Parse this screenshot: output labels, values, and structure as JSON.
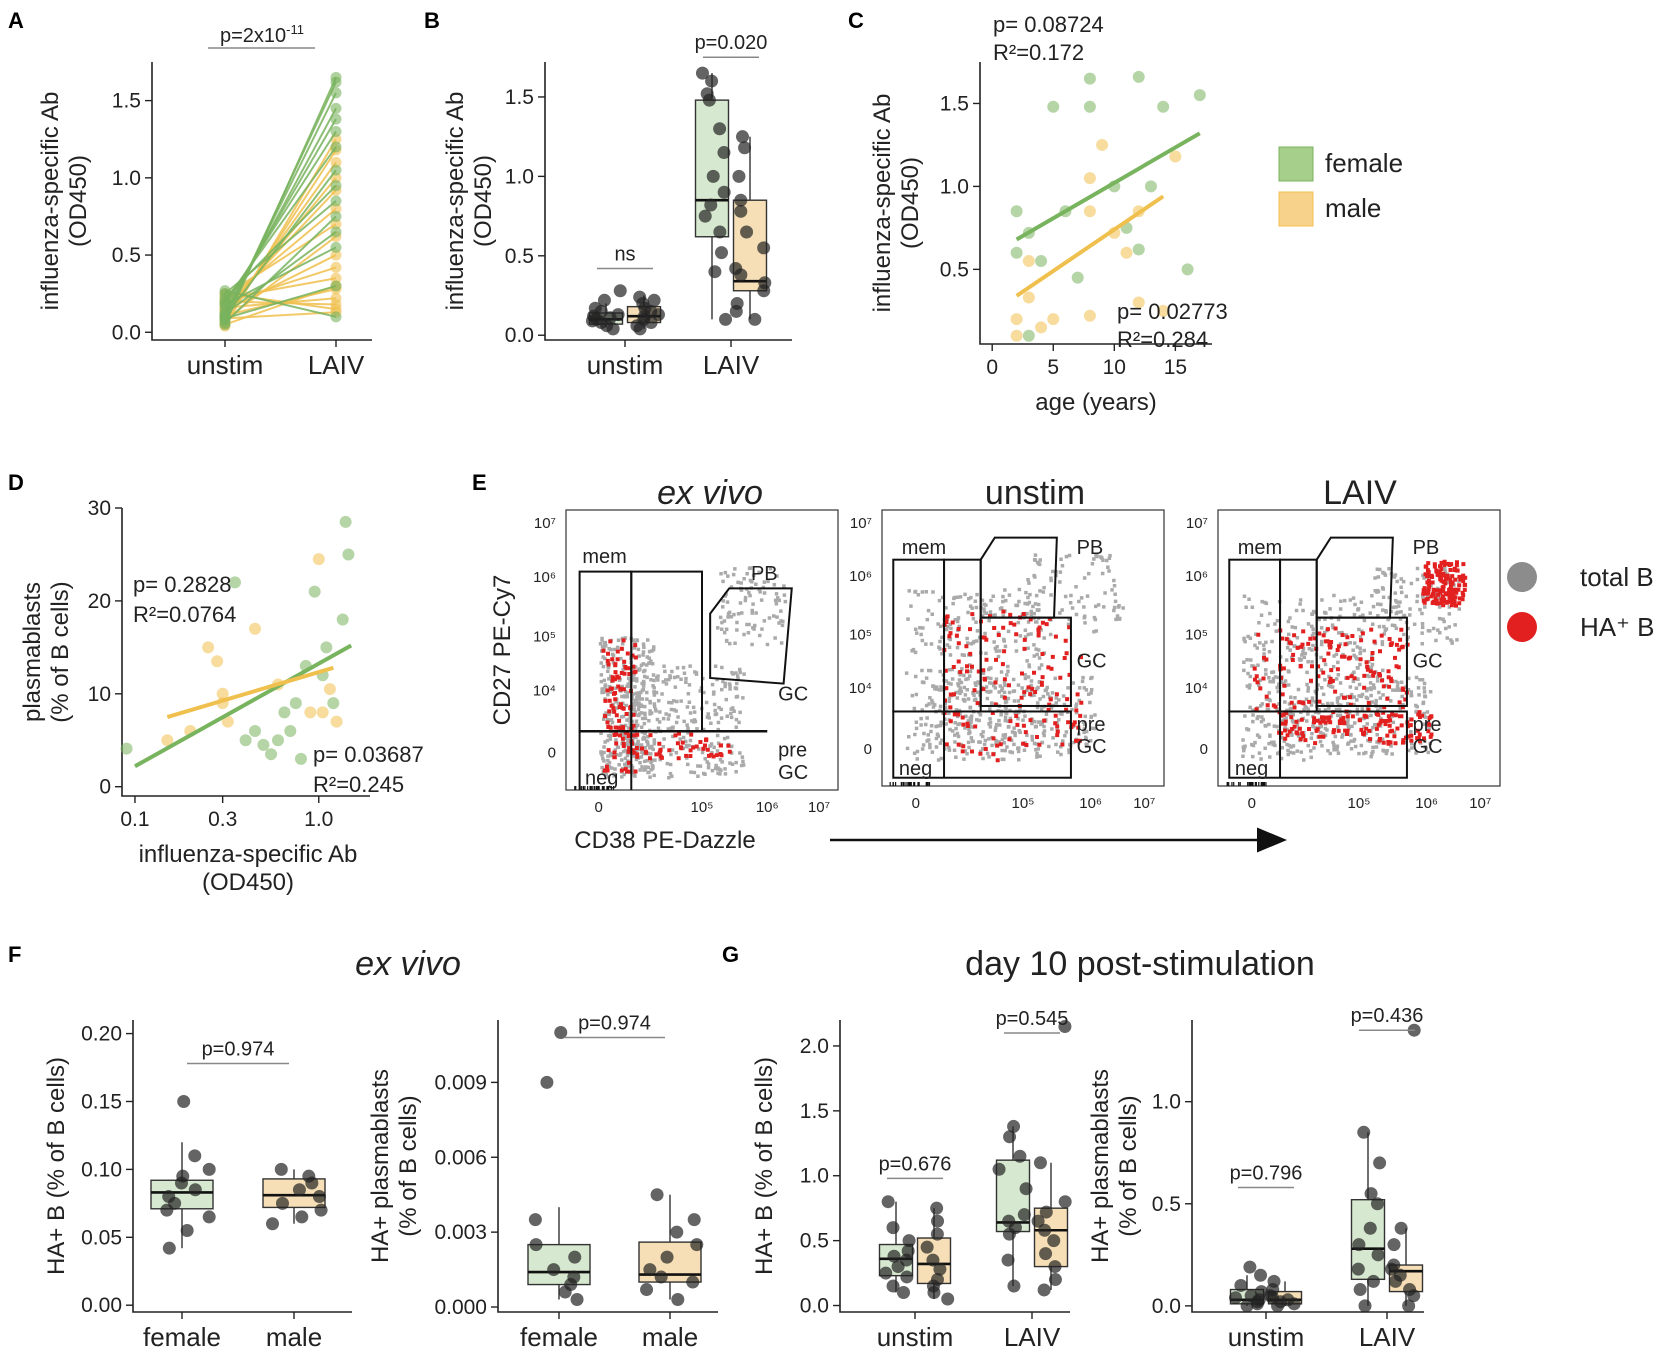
{
  "colors": {
    "female": "#78b35e",
    "male": "#f0c04e",
    "female_fill": "#d6e8cf",
    "male_fill": "#f6dfb6",
    "black": "#222222",
    "total_b": "#aaaaaa",
    "ha_b": "#e32020",
    "green_text": "#1d9a3c",
    "orange_text": "#e8ac3a"
  },
  "legend": {
    "female": "female",
    "male": "male",
    "total_b": "total B",
    "ha_b": "HA⁺ B"
  },
  "chart_data": [
    {
      "id": "A",
      "panel": "A",
      "type": "paired-line",
      "ylabel1": "influenza-specific Ab",
      "ylabel2": "(OD450)",
      "categories": [
        "unstim",
        "LAIV"
      ],
      "ylim": [
        -0.05,
        1.75
      ],
      "yticks": [
        "0.0",
        "0.5",
        "1.0",
        "1.5"
      ],
      "pvalue": "p=2x10",
      "pexp": "-11",
      "pairs_female": [
        [
          0.05,
          1.65
        ],
        [
          0.08,
          1.62
        ],
        [
          0.1,
          1.55
        ],
        [
          0.12,
          1.45
        ],
        [
          0.15,
          1.38
        ],
        [
          0.18,
          1.3
        ],
        [
          0.2,
          1.2
        ],
        [
          0.1,
          1.05
        ],
        [
          0.22,
          0.95
        ],
        [
          0.25,
          0.85
        ],
        [
          0.06,
          0.75
        ],
        [
          0.12,
          0.65
        ],
        [
          0.18,
          0.55
        ],
        [
          0.09,
          0.3
        ],
        [
          0.27,
          0.1
        ]
      ],
      "pairs_male": [
        [
          0.04,
          1.25
        ],
        [
          0.07,
          1.18
        ],
        [
          0.1,
          1.1
        ],
        [
          0.13,
          1.0
        ],
        [
          0.16,
          0.92
        ],
        [
          0.2,
          0.8
        ],
        [
          0.24,
          0.7
        ],
        [
          0.08,
          0.62
        ],
        [
          0.14,
          0.5
        ],
        [
          0.19,
          0.42
        ],
        [
          0.22,
          0.35
        ],
        [
          0.05,
          0.3
        ],
        [
          0.11,
          0.28
        ],
        [
          0.16,
          0.22
        ],
        [
          0.2,
          0.18
        ],
        [
          0.25,
          0.15
        ],
        [
          0.09,
          0.13
        ]
      ]
    },
    {
      "id": "B",
      "panel": "B",
      "type": "box",
      "ylabel1": "influenza-specific Ab",
      "ylabel2": "(OD450)",
      "categories": [
        "unstim",
        "LAIV"
      ],
      "ylim": [
        -0.03,
        1.72
      ],
      "yticks": [
        "0.0",
        "0.5",
        "1.0",
        "1.5"
      ],
      "annotations": [
        {
          "text": "ns",
          "group": 0,
          "y": 0.42
        },
        {
          "text": "p=0.020",
          "group": 1,
          "y": 1.75
        }
      ],
      "boxes": [
        {
          "group": 0,
          "sex": "female",
          "q1": 0.07,
          "med": 0.1,
          "q3": 0.14,
          "lo": 0.05,
          "hi": 0.2,
          "pts": [
            0.04,
            0.06,
            0.08,
            0.09,
            0.1,
            0.11,
            0.12,
            0.13,
            0.15,
            0.17,
            0.22,
            0.28
          ]
        },
        {
          "group": 0,
          "sex": "male",
          "q1": 0.08,
          "med": 0.12,
          "q3": 0.18,
          "lo": 0.04,
          "hi": 0.25,
          "pts": [
            0.04,
            0.06,
            0.08,
            0.1,
            0.12,
            0.13,
            0.15,
            0.17,
            0.2,
            0.22,
            0.24
          ]
        },
        {
          "group": 1,
          "sex": "female",
          "q1": 0.62,
          "med": 0.85,
          "q3": 1.48,
          "lo": 0.1,
          "hi": 1.65,
          "pts": [
            0.1,
            0.4,
            0.52,
            0.65,
            0.75,
            0.82,
            0.9,
            1.0,
            1.15,
            1.3,
            1.48,
            1.52,
            1.6,
            1.65
          ]
        },
        {
          "group": 1,
          "sex": "male",
          "q1": 0.28,
          "med": 0.34,
          "q3": 0.85,
          "lo": 0.1,
          "hi": 1.25,
          "pts": [
            0.1,
            0.15,
            0.2,
            0.28,
            0.33,
            0.38,
            0.42,
            0.55,
            0.65,
            0.78,
            0.85,
            1.0,
            1.18,
            1.25
          ]
        }
      ]
    },
    {
      "id": "C",
      "panel": "C",
      "type": "scatter",
      "ylabel1": "influenza-specific Ab",
      "ylabel2": "(OD450)",
      "xlabel": "age (years)",
      "xlim": [
        -1,
        18
      ],
      "ylim": [
        0.05,
        1.75
      ],
      "xticks": [
        0,
        5,
        10,
        15
      ],
      "yticks": [
        0.5,
        1.0,
        1.5
      ],
      "female_pts": [
        [
          2,
          0.85
        ],
        [
          2,
          0.6
        ],
        [
          3,
          0.72
        ],
        [
          4,
          0.55
        ],
        [
          5,
          1.48
        ],
        [
          7,
          0.45
        ],
        [
          8,
          1.48
        ],
        [
          8,
          1.65
        ],
        [
          10,
          1.0
        ],
        [
          11,
          0.75
        ],
        [
          12,
          1.66
        ],
        [
          13,
          1.0
        ],
        [
          14,
          1.48
        ],
        [
          16,
          0.5
        ],
        [
          17,
          1.55
        ],
        [
          3,
          0.1
        ],
        [
          12,
          0.62
        ],
        [
          6,
          0.85
        ]
      ],
      "male_pts": [
        [
          2,
          0.2
        ],
        [
          2,
          0.1
        ],
        [
          3,
          0.55
        ],
        [
          4,
          0.15
        ],
        [
          5,
          0.2
        ],
        [
          8,
          1.05
        ],
        [
          8,
          0.85
        ],
        [
          8,
          0.22
        ],
        [
          9,
          1.25
        ],
        [
          10,
          0.72
        ],
        [
          11,
          0.6
        ],
        [
          12,
          0.85
        ],
        [
          12,
          0.3
        ],
        [
          14,
          0.25
        ],
        [
          15,
          1.18
        ],
        [
          3,
          0.33
        ]
      ],
      "female_fit": [
        [
          2,
          0.68
        ],
        [
          17,
          1.32
        ]
      ],
      "male_fit": [
        [
          2,
          0.34
        ],
        [
          14,
          0.94
        ]
      ],
      "female_stats": [
        "p= 0.08724",
        "R²=0.172"
      ],
      "male_stats": [
        "p= 0.02773",
        "R²=0.284"
      ]
    },
    {
      "id": "D",
      "panel": "D",
      "type": "scatter-log",
      "ylabel1": "plasmablasts",
      "ylabel2": "(% of B cells)",
      "xlabel1": "influenza-specific Ab",
      "xlabel2": "(OD450)",
      "xlim": [
        0.085,
        1.9
      ],
      "ylim": [
        -1,
        30
      ],
      "xticks": [
        0.1,
        0.3,
        1.0
      ],
      "xtick_labels": [
        "0.1",
        "0.3",
        "1.0"
      ],
      "yticks": [
        0,
        10,
        20,
        30
      ],
      "female_pts": [
        [
          0.09,
          4.1
        ],
        [
          0.4,
          5
        ],
        [
          0.45,
          6
        ],
        [
          0.5,
          4.5
        ],
        [
          0.55,
          3.5
        ],
        [
          0.6,
          5
        ],
        [
          0.65,
          8
        ],
        [
          0.7,
          6
        ],
        [
          0.75,
          9
        ],
        [
          0.85,
          13
        ],
        [
          0.95,
          21
        ],
        [
          1.05,
          12
        ],
        [
          1.1,
          15
        ],
        [
          1.35,
          18
        ],
        [
          1.4,
          28.5
        ],
        [
          1.45,
          25
        ],
        [
          0.35,
          22
        ],
        [
          1.2,
          9
        ],
        [
          0.8,
          3
        ]
      ],
      "male_pts": [
        [
          0.15,
          5
        ],
        [
          0.2,
          6
        ],
        [
          0.25,
          15
        ],
        [
          0.28,
          13.5
        ],
        [
          0.3,
          10
        ],
        [
          0.32,
          7
        ],
        [
          0.3,
          9
        ],
        [
          0.45,
          17
        ],
        [
          0.9,
          8
        ],
        [
          1.0,
          24.5
        ],
        [
          1.05,
          8
        ],
        [
          1.15,
          10.5
        ],
        [
          0.6,
          11
        ],
        [
          1.25,
          7
        ]
      ],
      "female_fit": [
        [
          0.1,
          2.2
        ],
        [
          1.5,
          15.2
        ]
      ],
      "male_fit": [
        [
          0.15,
          7.5
        ],
        [
          1.2,
          12.8
        ]
      ],
      "female_stats": [
        "p= 0.03687",
        "R²=0.245"
      ],
      "male_stats": [
        "p= 0.2828",
        "R²=0.0764"
      ]
    },
    {
      "id": "F1",
      "panel": "F",
      "type": "box",
      "ylabel1": "HA+ B (% of B cells)",
      "ylabel2": "",
      "categories": [
        "female",
        "male"
      ],
      "ylim": [
        -0.005,
        0.21
      ],
      "yticks": [
        "0.00",
        "0.05",
        "0.10",
        "0.15",
        "0.20"
      ],
      "annotations": [
        {
          "text": "p=0.974",
          "span": true,
          "y": 0.178
        }
      ],
      "boxes": [
        {
          "group": 0,
          "sex": "female",
          "q1": 0.071,
          "med": 0.083,
          "q3": 0.092,
          "lo": 0.042,
          "hi": 0.12,
          "pts": [
            0.042,
            0.055,
            0.065,
            0.07,
            0.075,
            0.08,
            0.085,
            0.09,
            0.095,
            0.1,
            0.11,
            0.15
          ]
        },
        {
          "group": 1,
          "sex": "male",
          "q1": 0.072,
          "med": 0.081,
          "q3": 0.093,
          "lo": 0.06,
          "hi": 0.1,
          "pts": [
            0.06,
            0.065,
            0.07,
            0.075,
            0.08,
            0.085,
            0.09,
            0.095,
            0.1
          ]
        }
      ]
    },
    {
      "id": "F2",
      "panel": "F",
      "type": "box",
      "ylabel1": "HA+ plasmablasts",
      "ylabel2": "(% of B cells)",
      "categories": [
        "female",
        "male"
      ],
      "ylim": [
        -0.0002,
        0.0115
      ],
      "yticks": [
        "0.000",
        "0.003",
        "0.006",
        "0.009"
      ],
      "annotations": [
        {
          "text": "p=0.974",
          "span": true,
          "y": 0.0108
        }
      ],
      "boxes": [
        {
          "group": 0,
          "sex": "female",
          "q1": 0.0009,
          "med": 0.0014,
          "q3": 0.0025,
          "lo": 0.0003,
          "hi": 0.004,
          "pts": [
            0.0003,
            0.0006,
            0.0009,
            0.0012,
            0.0015,
            0.002,
            0.0025,
            0.0035,
            0.009,
            0.011
          ]
        },
        {
          "group": 1,
          "sex": "male",
          "q1": 0.001,
          "med": 0.0013,
          "q3": 0.0026,
          "lo": 0.0003,
          "hi": 0.0045,
          "pts": [
            0.0003,
            0.0007,
            0.001,
            0.0012,
            0.0015,
            0.002,
            0.0025,
            0.003,
            0.0035,
            0.0045
          ]
        }
      ]
    },
    {
      "id": "G1",
      "panel": "G",
      "type": "box",
      "ylabel1": "HA+ B (% of B cells)",
      "ylabel2": "",
      "categories": [
        "unstim",
        "LAIV"
      ],
      "ylim": [
        -0.05,
        2.2
      ],
      "yticks": [
        "0.0",
        "0.5",
        "1.0",
        "1.5",
        "2.0"
      ],
      "annotations": [
        {
          "text": "p=0.676",
          "group": 0,
          "y": 0.98
        },
        {
          "text": "p=0.545",
          "group": 1,
          "y": 2.1
        }
      ],
      "boxes": [
        {
          "group": 0,
          "sex": "female",
          "q1": 0.23,
          "med": 0.36,
          "q3": 0.47,
          "lo": 0.1,
          "hi": 0.8,
          "pts": [
            0.1,
            0.15,
            0.22,
            0.25,
            0.3,
            0.35,
            0.38,
            0.42,
            0.5,
            0.6,
            0.8
          ]
        },
        {
          "group": 0,
          "sex": "male",
          "q1": 0.17,
          "med": 0.32,
          "q3": 0.52,
          "lo": 0.05,
          "hi": 0.75,
          "pts": [
            0.05,
            0.1,
            0.15,
            0.2,
            0.28,
            0.35,
            0.45,
            0.55,
            0.65,
            0.75
          ]
        },
        {
          "group": 1,
          "sex": "female",
          "q1": 0.57,
          "med": 0.64,
          "q3": 1.12,
          "lo": 0.15,
          "hi": 1.38,
          "pts": [
            0.15,
            0.35,
            0.55,
            0.6,
            0.65,
            0.7,
            0.9,
            1.05,
            1.15,
            1.3,
            1.38
          ]
        },
        {
          "group": 1,
          "sex": "male",
          "q1": 0.3,
          "med": 0.58,
          "q3": 0.75,
          "lo": 0.12,
          "hi": 1.1,
          "pts": [
            0.12,
            0.2,
            0.3,
            0.4,
            0.5,
            0.58,
            0.65,
            0.72,
            0.8,
            1.1,
            2.15
          ]
        }
      ]
    },
    {
      "id": "G2",
      "panel": "G",
      "type": "box",
      "ylabel1": "HA+ plasmablasts",
      "ylabel2": "(% of B cells)",
      "categories": [
        "unstim",
        "LAIV"
      ],
      "ylim": [
        -0.03,
        1.4
      ],
      "yticks": [
        "0.0",
        "0.5",
        "1.0"
      ],
      "annotations": [
        {
          "text": "p=0.796",
          "group": 0,
          "y": 0.58
        },
        {
          "text": "p=0.436",
          "group": 1,
          "y": 1.35
        }
      ],
      "boxes": [
        {
          "group": 0,
          "sex": "female",
          "q1": 0.01,
          "med": 0.03,
          "q3": 0.08,
          "lo": 0.0,
          "hi": 0.15,
          "pts": [
            0.0,
            0.01,
            0.02,
            0.03,
            0.04,
            0.05,
            0.07,
            0.1,
            0.15,
            0.19
          ]
        },
        {
          "group": 0,
          "sex": "male",
          "q1": 0.01,
          "med": 0.03,
          "q3": 0.07,
          "lo": 0.0,
          "hi": 0.12,
          "pts": [
            0.0,
            0.01,
            0.02,
            0.03,
            0.04,
            0.05,
            0.08,
            0.12
          ]
        },
        {
          "group": 1,
          "sex": "female",
          "q1": 0.13,
          "med": 0.28,
          "q3": 0.52,
          "lo": 0.0,
          "hi": 0.85,
          "pts": [
            0.0,
            0.08,
            0.12,
            0.18,
            0.25,
            0.3,
            0.38,
            0.5,
            0.55,
            0.7,
            0.85
          ]
        },
        {
          "group": 1,
          "sex": "male",
          "q1": 0.07,
          "med": 0.17,
          "q3": 0.2,
          "lo": 0.0,
          "hi": 0.38,
          "pts": [
            0.0,
            0.05,
            0.08,
            0.12,
            0.15,
            0.18,
            0.2,
            0.3,
            0.38,
            1.35
          ]
        }
      ]
    }
  ],
  "panel_labels": [
    "A",
    "B",
    "C",
    "D",
    "E",
    "F",
    "G"
  ],
  "panel_e": {
    "titles": [
      "ex vivo",
      "unstim",
      "LAIV"
    ],
    "ylabel": "CD27 PE-Cy7",
    "xlabel": "CD38 PE-Dazzle",
    "gates": {
      "mem": "mem",
      "pb": "PB",
      "gc": "GC",
      "pre": "pre",
      "gc2": "GC",
      "neg": "neg"
    },
    "yticks": [
      "10⁷",
      "10⁶",
      "10⁵",
      "10⁴",
      "0"
    ],
    "xticks": [
      "0",
      "10⁵",
      "10⁶",
      "10⁷"
    ]
  },
  "section_titles": {
    "f": "ex vivo",
    "g": "day 10 post-stimulation"
  }
}
